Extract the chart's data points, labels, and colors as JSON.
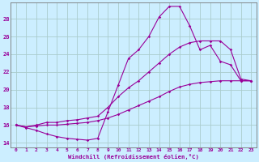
{
  "xlabel": "Windchill (Refroidissement éolien,°C)",
  "background_color": "#cceeff",
  "line_color": "#990099",
  "grid_color": "#aacccc",
  "xlim": [
    -0.5,
    23.5
  ],
  "ylim": [
    13.5,
    29.8
  ],
  "yticks": [
    14,
    16,
    18,
    20,
    22,
    24,
    26,
    28
  ],
  "xticks": [
    0,
    1,
    2,
    3,
    4,
    5,
    6,
    7,
    8,
    9,
    10,
    11,
    12,
    13,
    14,
    15,
    16,
    17,
    18,
    19,
    20,
    21,
    22,
    23
  ],
  "series": [
    {
      "x": [
        0,
        1,
        2,
        3,
        4,
        5,
        6,
        7,
        8,
        9,
        10,
        11,
        12,
        13,
        14,
        15,
        16,
        17,
        18,
        19,
        20,
        21,
        22,
        23
      ],
      "y": [
        16.0,
        15.7,
        15.4,
        15.0,
        14.7,
        14.5,
        14.4,
        14.3,
        14.5,
        17.5,
        20.5,
        23.5,
        24.5,
        26.0,
        28.2,
        29.4,
        29.4,
        27.2,
        24.5,
        25.0,
        23.2,
        22.8,
        21.0,
        21.0
      ]
    },
    {
      "x": [
        0,
        1,
        2,
        3,
        4,
        5,
        6,
        7,
        8,
        9,
        10,
        11,
        12,
        13,
        14,
        15,
        16,
        17,
        18,
        19,
        20,
        21,
        22,
        23
      ],
      "y": [
        16.0,
        15.8,
        16.0,
        16.3,
        16.3,
        16.5,
        16.6,
        16.8,
        17.0,
        18.0,
        19.2,
        20.2,
        21.0,
        22.0,
        23.0,
        24.0,
        24.8,
        25.3,
        25.5,
        25.5,
        25.5,
        24.5,
        21.2,
        21.0
      ]
    },
    {
      "x": [
        0,
        1,
        2,
        3,
        4,
        5,
        6,
        7,
        8,
        9,
        10,
        11,
        12,
        13,
        14,
        15,
        16,
        17,
        18,
        19,
        20,
        21,
        22,
        23
      ],
      "y": [
        16.0,
        15.8,
        15.9,
        16.0,
        16.0,
        16.1,
        16.2,
        16.3,
        16.5,
        16.8,
        17.2,
        17.7,
        18.2,
        18.7,
        19.2,
        19.8,
        20.3,
        20.6,
        20.8,
        20.9,
        21.0,
        21.0,
        21.0,
        21.0
      ]
    }
  ]
}
